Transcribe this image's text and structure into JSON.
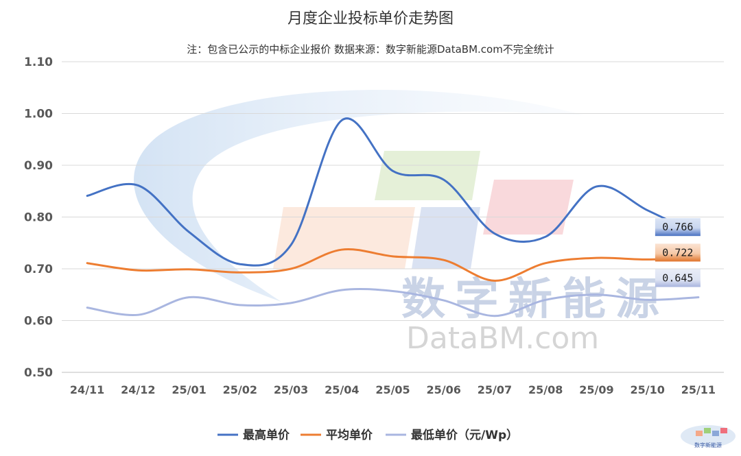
{
  "chart_data": {
    "type": "line",
    "title": "月度企业投标单价走势图",
    "subtitle": "注：包含已公示的中标企业报价 数据来源：数字新能源DataBM.com不完全统计",
    "categories": [
      "24/11",
      "24/12",
      "25/01",
      "25/02",
      "25/03",
      "25/04",
      "25/05",
      "25/06",
      "25/07",
      "25/08",
      "25/09",
      "25/10",
      "25/11"
    ],
    "ylim": [
      0.5,
      1.1
    ],
    "yticks": [
      "0.50",
      "0.60",
      "0.70",
      "0.80",
      "0.90",
      "1.00",
      "1.10"
    ],
    "grid": true,
    "legend_position": "bottom",
    "series": [
      {
        "name": "最高单价",
        "color": "#4472c4",
        "values": [
          0.841,
          0.861,
          0.771,
          0.709,
          0.746,
          0.987,
          0.889,
          0.872,
          0.768,
          0.762,
          0.859,
          0.813,
          0.766
        ],
        "end_label": "0.766"
      },
      {
        "name": "平均单价",
        "color": "#ed7d31",
        "values": [
          0.711,
          0.697,
          0.699,
          0.693,
          0.7,
          0.737,
          0.724,
          0.717,
          0.677,
          0.711,
          0.721,
          0.718,
          0.722
        ],
        "end_label": "0.722"
      },
      {
        "name": "最低单价（元/Wp）",
        "color": "#a9b6e0",
        "values": [
          0.625,
          0.611,
          0.645,
          0.63,
          0.634,
          0.659,
          0.657,
          0.639,
          0.609,
          0.64,
          0.65,
          0.64,
          0.645
        ],
        "end_label": "0.645"
      }
    ]
  },
  "watermark": {
    "cn": "数字新能源",
    "en": "DataBM.com"
  },
  "corner_logo": "数字新能源"
}
